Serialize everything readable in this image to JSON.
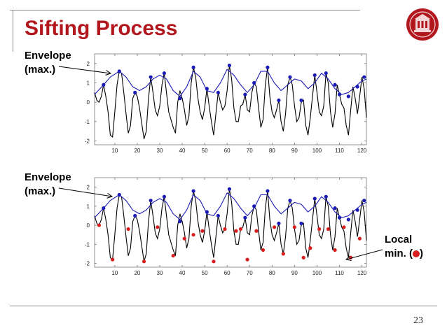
{
  "slide": {
    "title": "Sifting Process",
    "page_number": "23",
    "label_top": "Envelope\n(max.)",
    "label_bottom": "Envelope\n(max.)",
    "label_local_min_line1": "Local",
    "label_local_min_line2_pre": "min. (",
    "label_local_min_line2_post": ")"
  },
  "colors": {
    "title": "#b2171e",
    "signal": "#000000",
    "envelope": "#1a1ab4",
    "maxima": "#1a1ab4",
    "minima": "#d81e1e",
    "logo": "#b2171e"
  },
  "chart_data": [
    {
      "type": "line",
      "xlim": [
        1,
        122
      ],
      "ylim": [
        -2.2,
        2.5
      ],
      "xticks": [
        10,
        20,
        30,
        40,
        50,
        60,
        70,
        80,
        90,
        100,
        110,
        120
      ],
      "yticks": [
        -2,
        -1,
        0,
        1,
        2
      ],
      "grid": false,
      "series": [
        {
          "role": "signal",
          "x": [
            1,
            2,
            3,
            4,
            5,
            6,
            7,
            8,
            9,
            10,
            11,
            12,
            13,
            14,
            15,
            16,
            17,
            18,
            19,
            20,
            21,
            22,
            23,
            24,
            25,
            26,
            27,
            28,
            29,
            30,
            31,
            32,
            33,
            34,
            35,
            36,
            37,
            38,
            39,
            40,
            41,
            42,
            43,
            44,
            45,
            46,
            47,
            48,
            49,
            50,
            51,
            52,
            53,
            54,
            55,
            56,
            57,
            58,
            59,
            60,
            61,
            62,
            63,
            64,
            65,
            66,
            67,
            68,
            69,
            70,
            71,
            72,
            73,
            74,
            75,
            76,
            77,
            78,
            79,
            80,
            81,
            82,
            83,
            84,
            85,
            86,
            87,
            88,
            89,
            90,
            91,
            92,
            93,
            94,
            95,
            96,
            97,
            98,
            99,
            100,
            101,
            102,
            103,
            104,
            105,
            106,
            107,
            108,
            109,
            110,
            111,
            112,
            113,
            114,
            115,
            116,
            117,
            118,
            119,
            120,
            121,
            122
          ],
          "y": [
            0.5,
            0.1,
            0.0,
            0.3,
            0.9,
            0.3,
            -0.5,
            -1.7,
            -1.8,
            -0.5,
            0.9,
            1.6,
            1.5,
            0.5,
            -0.6,
            -1.6,
            -1.2,
            0.2,
            0.5,
            0.3,
            -0.3,
            -1.1,
            -1.9,
            -1.5,
            0.2,
            1.3,
            0.5,
            -0.4,
            -0.7,
            -0.2,
            0.9,
            1.5,
            0.5,
            -0.5,
            -0.9,
            -1.3,
            -1.6,
            0.0,
            0.6,
            0.2,
            -0.4,
            -1.2,
            -0.7,
            1.0,
            1.8,
            1.3,
            0.2,
            -0.5,
            -0.9,
            -0.3,
            0.7,
            -0.2,
            -1.0,
            -1.7,
            -0.6,
            0.5,
            0.0,
            -0.4,
            -0.2,
            0.6,
            1.9,
            1.2,
            -0.3,
            -1.0,
            -1.0,
            -0.2,
            -0.1,
            0.4,
            -0.4,
            -0.5,
            0.5,
            1.0,
            0.8,
            -0.3,
            -1.3,
            -0.9,
            0.9,
            1.8,
            0.3,
            -0.5,
            -0.8,
            -0.4,
            0.1,
            -1.0,
            -1.5,
            -0.6,
            0.9,
            1.3,
            0.9,
            -0.2,
            -1.0,
            -0.8,
            0.0,
            0.1,
            -1.2,
            -1.7,
            -0.8,
            0.3,
            1.4,
            0.5,
            -0.5,
            -0.7,
            -0.2,
            1.5,
            1.0,
            -0.5,
            -1.3,
            -0.6,
            0.9,
            0.4,
            -0.1,
            -0.3,
            -1.2,
            -1.7,
            -0.4,
            0.8,
            0.2,
            -0.6,
            0.3,
            1.3,
            0.7,
            -0.8
          ]
        },
        {
          "role": "envelope",
          "x": [
            1,
            5,
            8,
            12,
            15,
            18,
            21,
            24,
            27,
            30,
            33,
            36,
            39,
            42,
            45,
            48,
            51,
            54,
            57,
            60,
            63,
            66,
            69,
            72,
            75,
            78,
            81,
            84,
            87,
            90,
            93,
            96,
            99,
            102,
            105,
            108,
            111,
            114,
            117,
            120,
            122
          ],
          "y": [
            0.4,
            0.9,
            1.3,
            1.6,
            1.3,
            0.8,
            0.6,
            0.8,
            1.2,
            1.4,
            1.2,
            0.6,
            0.3,
            0.8,
            1.6,
            1.3,
            0.6,
            0.5,
            1.0,
            1.7,
            1.4,
            0.9,
            0.5,
            0.9,
            1.6,
            1.6,
            1.0,
            0.6,
            0.9,
            1.2,
            1.1,
            0.7,
            1.0,
            1.5,
            1.2,
            0.7,
            0.4,
            0.5,
            0.8,
            1.1,
            1.2
          ]
        },
        {
          "role": "maxima",
          "x": [
            5,
            12,
            19,
            26,
            32,
            39,
            45,
            51,
            56,
            61,
            68,
            72,
            78,
            83,
            88,
            93,
            99,
            104,
            108,
            110,
            114,
            118,
            121
          ],
          "y": [
            0.9,
            1.6,
            0.5,
            1.3,
            1.5,
            0.2,
            1.8,
            0.7,
            0.5,
            1.9,
            0.4,
            1.0,
            1.8,
            0.1,
            1.3,
            0.1,
            1.4,
            1.5,
            0.9,
            0.4,
            0.3,
            0.8,
            1.3
          ]
        }
      ]
    },
    {
      "type": "line",
      "xlim": [
        1,
        122
      ],
      "ylim": [
        -2.2,
        2.5
      ],
      "xticks": [
        10,
        20,
        30,
        40,
        50,
        60,
        70,
        80,
        90,
        100,
        110,
        120
      ],
      "yticks": [
        -2,
        -1,
        0,
        1,
        2
      ],
      "grid": false,
      "series": [
        {
          "role": "signal",
          "same_as_chart": 0
        },
        {
          "role": "envelope",
          "same_as_chart": 0
        },
        {
          "role": "maxima",
          "same_as_chart": 0
        },
        {
          "role": "minima",
          "x": [
            3,
            9,
            16,
            23,
            29,
            36,
            41,
            45,
            49,
            54,
            59,
            64,
            66,
            69,
            73,
            76,
            81,
            85,
            90,
            94,
            97,
            101,
            105,
            108,
            112,
            115,
            119
          ],
          "y": [
            0.0,
            -1.8,
            -0.2,
            -1.9,
            -0.1,
            -1.6,
            -0.7,
            -0.5,
            -0.3,
            -1.9,
            -0.2,
            -0.3,
            -0.2,
            -1.8,
            -0.3,
            -1.3,
            -0.1,
            -1.5,
            -0.1,
            -1.7,
            -1.2,
            -0.2,
            -0.2,
            -1.3,
            -0.1,
            -1.7,
            -0.7
          ]
        }
      ]
    }
  ]
}
